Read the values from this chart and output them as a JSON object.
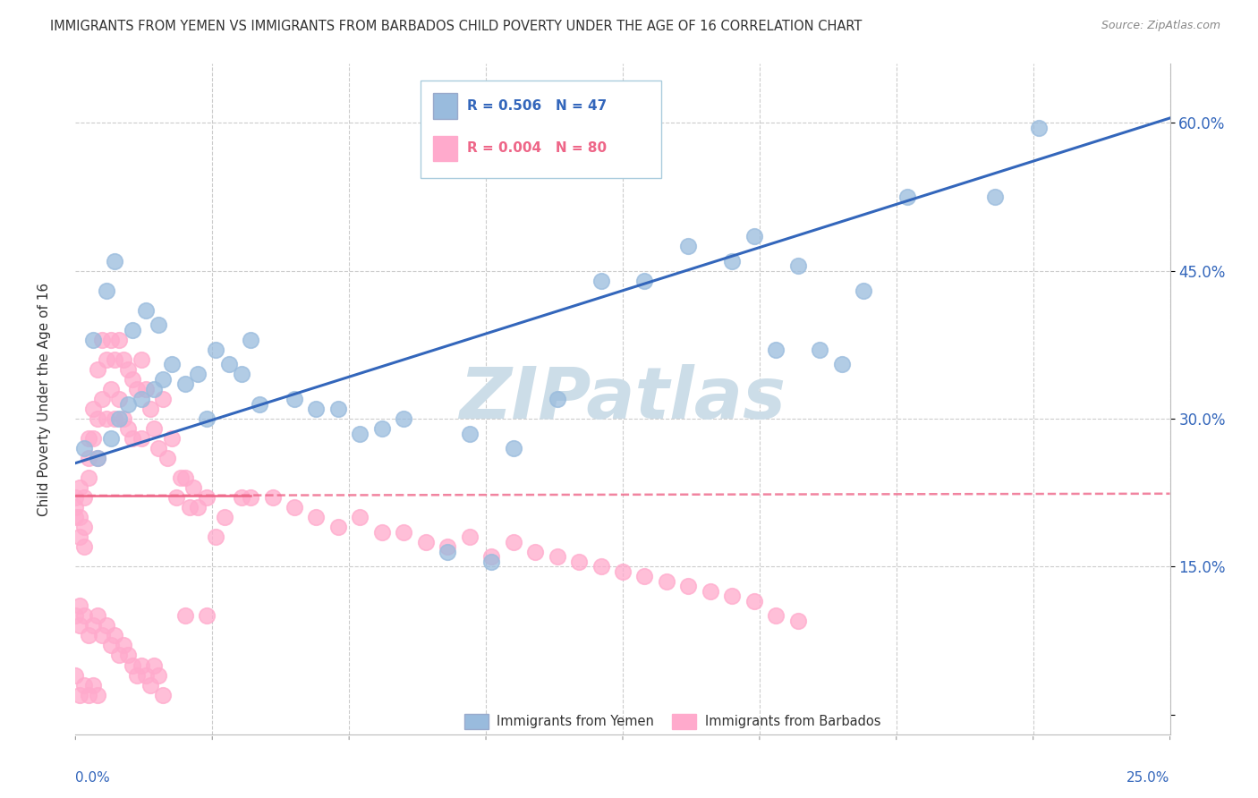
{
  "title": "IMMIGRANTS FROM YEMEN VS IMMIGRANTS FROM BARBADOS CHILD POVERTY UNDER THE AGE OF 16 CORRELATION CHART",
  "source": "Source: ZipAtlas.com",
  "ylabel": "Child Poverty Under the Age of 16",
  "xlim": [
    0.0,
    0.25
  ],
  "ylim": [
    -0.02,
    0.66
  ],
  "ytick_values": [
    0.0,
    0.15,
    0.3,
    0.45,
    0.6
  ],
  "ytick_labels": [
    "",
    "15.0%",
    "30.0%",
    "45.0%",
    "60.0%"
  ],
  "blue_color": "#99BBDD",
  "pink_color": "#FFAACC",
  "trendline_blue_color": "#3366BB",
  "trendline_pink_color": "#EE6688",
  "grid_color": "#CCCCCC",
  "watermark_color": "#CCDDE8",
  "blue_scatter_x": [
    0.005,
    0.008,
    0.01,
    0.012,
    0.015,
    0.018,
    0.02,
    0.025,
    0.03,
    0.035,
    0.04,
    0.05,
    0.06,
    0.065,
    0.07,
    0.09,
    0.1,
    0.11,
    0.13,
    0.15,
    0.155,
    0.16,
    0.17,
    0.175,
    0.18,
    0.002,
    0.004,
    0.007,
    0.009,
    0.013,
    0.016,
    0.019,
    0.022,
    0.028,
    0.032,
    0.038,
    0.042,
    0.055,
    0.075,
    0.085,
    0.095,
    0.12,
    0.14,
    0.165,
    0.19,
    0.21,
    0.22
  ],
  "blue_scatter_y": [
    0.26,
    0.28,
    0.3,
    0.315,
    0.32,
    0.33,
    0.34,
    0.335,
    0.3,
    0.355,
    0.38,
    0.32,
    0.31,
    0.285,
    0.29,
    0.285,
    0.27,
    0.32,
    0.44,
    0.46,
    0.485,
    0.37,
    0.37,
    0.355,
    0.43,
    0.27,
    0.38,
    0.43,
    0.46,
    0.39,
    0.41,
    0.395,
    0.355,
    0.345,
    0.37,
    0.345,
    0.315,
    0.31,
    0.3,
    0.165,
    0.155,
    0.44,
    0.475,
    0.455,
    0.525,
    0.525,
    0.595
  ],
  "pink_scatter_x": [
    0.0,
    0.0,
    0.0,
    0.001,
    0.001,
    0.001,
    0.002,
    0.002,
    0.002,
    0.003,
    0.003,
    0.003,
    0.004,
    0.004,
    0.005,
    0.005,
    0.005,
    0.006,
    0.006,
    0.007,
    0.007,
    0.008,
    0.008,
    0.009,
    0.009,
    0.01,
    0.01,
    0.011,
    0.011,
    0.012,
    0.012,
    0.013,
    0.013,
    0.014,
    0.015,
    0.015,
    0.016,
    0.017,
    0.018,
    0.019,
    0.02,
    0.021,
    0.022,
    0.023,
    0.024,
    0.025,
    0.026,
    0.027,
    0.028,
    0.03,
    0.032,
    0.034,
    0.038,
    0.04,
    0.045,
    0.05,
    0.055,
    0.06,
    0.065,
    0.07,
    0.075,
    0.08,
    0.085,
    0.09,
    0.095,
    0.1,
    0.105,
    0.11,
    0.115,
    0.12,
    0.125,
    0.13,
    0.135,
    0.14,
    0.145,
    0.15,
    0.155,
    0.16,
    0.165
  ],
  "pink_scatter_y": [
    0.22,
    0.21,
    0.2,
    0.23,
    0.2,
    0.18,
    0.22,
    0.19,
    0.17,
    0.28,
    0.26,
    0.24,
    0.31,
    0.28,
    0.35,
    0.3,
    0.26,
    0.38,
    0.32,
    0.36,
    0.3,
    0.38,
    0.33,
    0.36,
    0.3,
    0.38,
    0.32,
    0.36,
    0.3,
    0.35,
    0.29,
    0.34,
    0.28,
    0.33,
    0.36,
    0.28,
    0.33,
    0.31,
    0.29,
    0.27,
    0.32,
    0.26,
    0.28,
    0.22,
    0.24,
    0.24,
    0.21,
    0.23,
    0.21,
    0.22,
    0.18,
    0.2,
    0.22,
    0.22,
    0.22,
    0.21,
    0.2,
    0.19,
    0.2,
    0.185,
    0.185,
    0.175,
    0.17,
    0.18,
    0.16,
    0.175,
    0.165,
    0.16,
    0.155,
    0.15,
    0.145,
    0.14,
    0.135,
    0.13,
    0.125,
    0.12,
    0.115,
    0.1,
    0.095
  ],
  "pink_extra_low_x": [
    0.0,
    0.001,
    0.001,
    0.002,
    0.003,
    0.004,
    0.005,
    0.006,
    0.007,
    0.008,
    0.009,
    0.01,
    0.011,
    0.012,
    0.013,
    0.014,
    0.015,
    0.016,
    0.017,
    0.018,
    0.019,
    0.02,
    0.025,
    0.03,
    0.0,
    0.001,
    0.002,
    0.003,
    0.004,
    0.005
  ],
  "pink_extra_low_y": [
    0.1,
    0.11,
    0.09,
    0.1,
    0.08,
    0.09,
    0.1,
    0.08,
    0.09,
    0.07,
    0.08,
    0.06,
    0.07,
    0.06,
    0.05,
    0.04,
    0.05,
    0.04,
    0.03,
    0.05,
    0.04,
    0.02,
    0.1,
    0.1,
    0.04,
    0.02,
    0.03,
    0.02,
    0.03,
    0.02
  ],
  "trendline_blue_x0": 0.0,
  "trendline_blue_y0": 0.255,
  "trendline_blue_x1": 0.25,
  "trendline_blue_y1": 0.605,
  "trendline_pink_y": 0.222
}
